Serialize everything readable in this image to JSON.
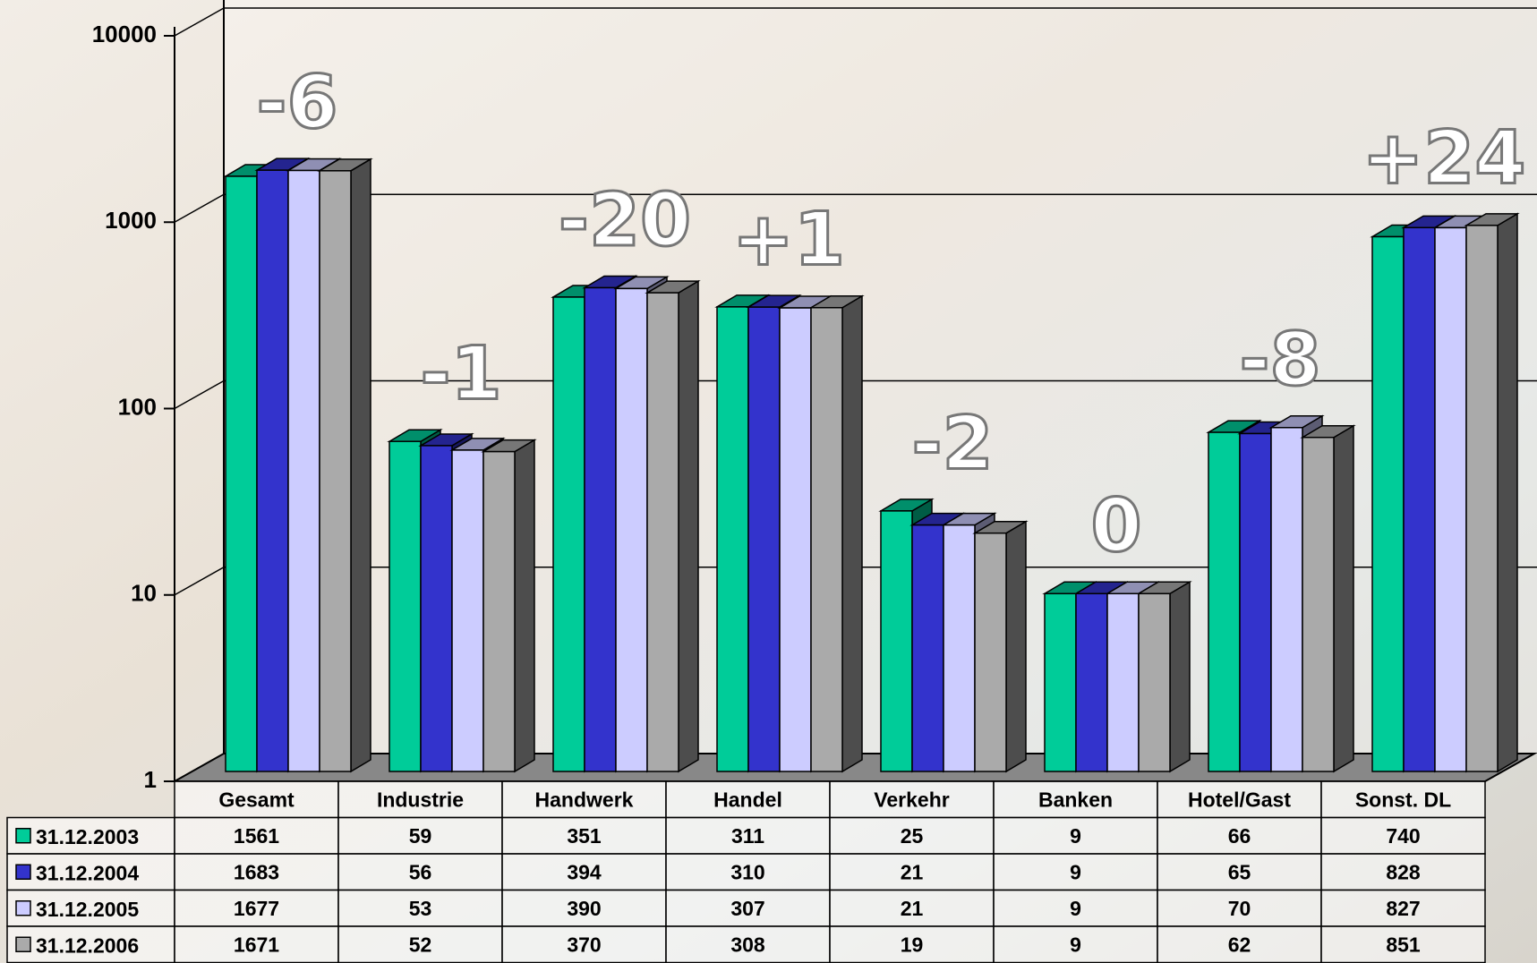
{
  "chart_data": {
    "type": "bar3d",
    "categories": [
      "Gesamt",
      "Industrie",
      "Handwerk",
      "Handel",
      "Verkehr",
      "Banken",
      "Hotel/Gast",
      "Sonst. DL"
    ],
    "series": [
      {
        "name": "31.12.2003",
        "color": "#00cc99",
        "values": [
          1561,
          59,
          351,
          311,
          25,
          9,
          66,
          740
        ]
      },
      {
        "name": "31.12.2004",
        "color": "#3333cc",
        "values": [
          1683,
          56,
          394,
          310,
          21,
          9,
          65,
          828
        ]
      },
      {
        "name": "31.12.2005",
        "color": "#ccccff",
        "values": [
          1677,
          53,
          390,
          307,
          21,
          9,
          70,
          827
        ]
      },
      {
        "name": "31.12.2006",
        "color": "#aaaaaa",
        "values": [
          1671,
          52,
          370,
          308,
          19,
          9,
          62,
          851
        ]
      }
    ],
    "annotations": [
      "-6",
      "-1",
      "-20",
      "+1",
      "-2",
      "0",
      "-8",
      "+24"
    ],
    "ylim": [
      1,
      10000
    ],
    "yticks": [
      1,
      10,
      100,
      1000,
      10000
    ],
    "log_scale": true,
    "grid": true
  }
}
